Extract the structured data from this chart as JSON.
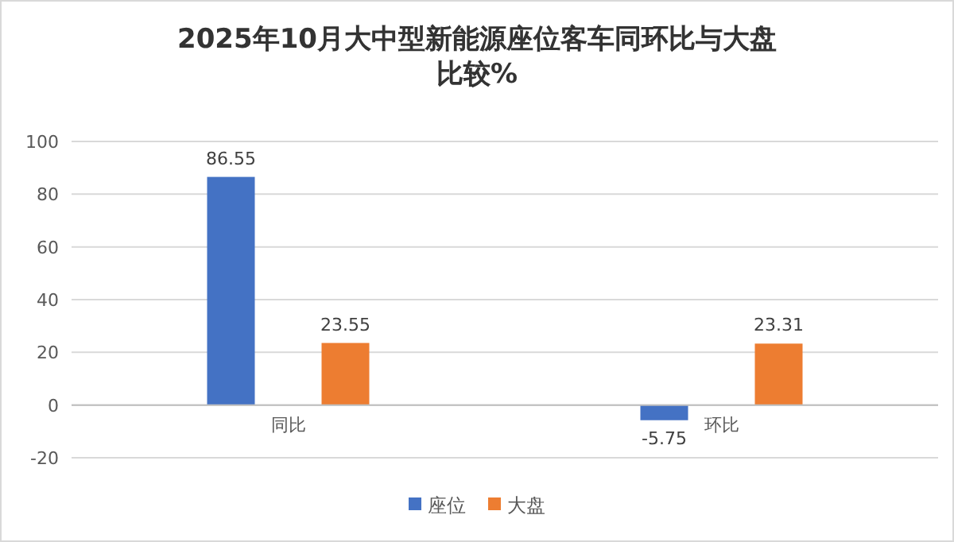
{
  "chart_data": {
    "type": "bar",
    "title": "2025年10月大中型新能源座位客车同环比与大盘比较%",
    "categories": [
      "同比",
      "环比"
    ],
    "series": [
      {
        "name": "座位",
        "color": "#4472c4",
        "values": [
          86.55,
          -5.75
        ]
      },
      {
        "name": "大盘",
        "color": "#ed7d31",
        "values": [
          23.55,
          23.31
        ]
      }
    ],
    "ylim": [
      -20,
      100
    ],
    "yticks": [
      -20,
      0,
      20,
      40,
      60,
      80,
      100
    ],
    "grid": "y",
    "legend": "bottom",
    "data_labels": true
  }
}
